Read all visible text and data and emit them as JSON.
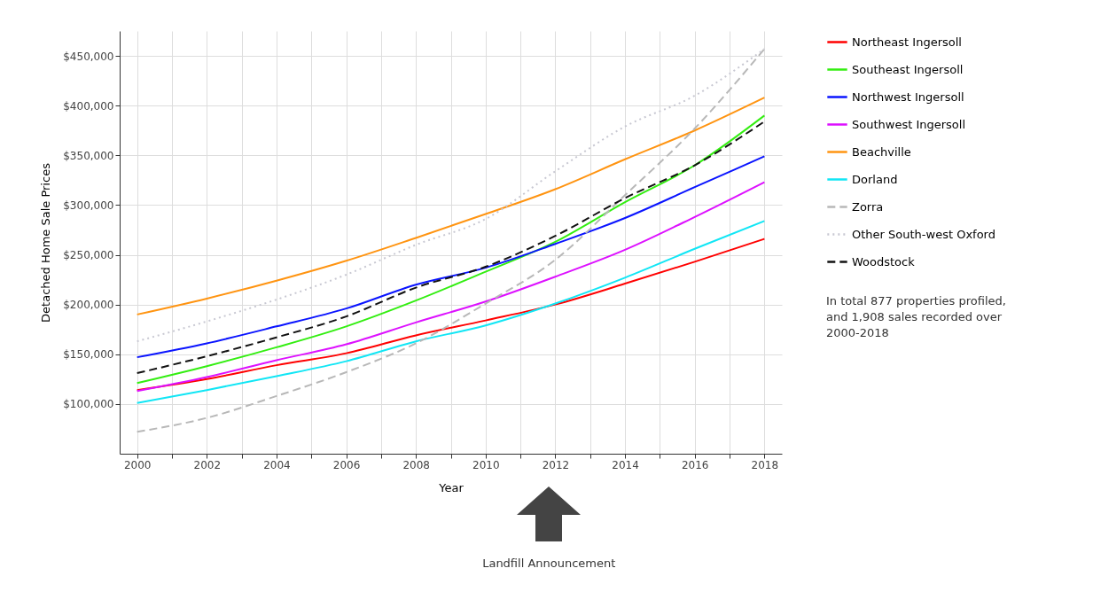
{
  "chart_data": {
    "type": "line",
    "xlabel": "Year",
    "ylabel": "Detached Home Sale Prices",
    "x": [
      2000,
      2002,
      2004,
      2006,
      2008,
      2010,
      2012,
      2014,
      2016,
      2018
    ],
    "series": [
      {
        "name": "Northeast Ingersoll",
        "color": "#ff0000",
        "line_style": "solid",
        "values": [
          114000,
          125000,
          139000,
          151000,
          169000,
          184000,
          200000,
          221000,
          243000,
          266000
        ]
      },
      {
        "name": "Southeast Ingersoll",
        "color": "#33ee11",
        "line_style": "solid",
        "values": [
          121000,
          138000,
          157000,
          178000,
          204000,
          233000,
          263000,
          303000,
          340000,
          390000
        ]
      },
      {
        "name": "Northwest Ingersoll",
        "color": "#0a14ff",
        "line_style": "solid",
        "values": [
          147000,
          161000,
          178000,
          196000,
          220000,
          237000,
          261000,
          287000,
          318000,
          349000
        ]
      },
      {
        "name": "Southwest Ingersoll",
        "color": "#dd11ff",
        "line_style": "solid",
        "values": [
          113000,
          127000,
          144000,
          160000,
          182000,
          203000,
          228000,
          255000,
          288000,
          323000
        ]
      },
      {
        "name": "Beachville",
        "color": "#ff9411",
        "line_style": "solid",
        "values": [
          190000,
          206000,
          224000,
          244000,
          267000,
          291000,
          316000,
          346000,
          375000,
          408000
        ]
      },
      {
        "name": "Dorland",
        "color": "#11e6f5",
        "line_style": "solid",
        "values": [
          101000,
          114000,
          128000,
          143000,
          163000,
          179000,
          201000,
          227000,
          256000,
          284000
        ]
      },
      {
        "name": "Zorra",
        "color": "#b8b8b8",
        "line_style": "dashed",
        "values": [
          72000,
          86000,
          108000,
          132000,
          161000,
          201000,
          245000,
          310000,
          377000,
          457000
        ]
      },
      {
        "name": "Other South-west Oxford",
        "color": "#c8c8d2",
        "line_style": "dotted",
        "values": [
          163000,
          183000,
          205000,
          230000,
          260000,
          286000,
          334000,
          379000,
          410000,
          457000
        ]
      },
      {
        "name": "Woodstock",
        "color": "#111111",
        "line_style": "dashed",
        "values": [
          131000,
          148000,
          167000,
          188000,
          217000,
          238000,
          269000,
          307000,
          340000,
          384000
        ]
      }
    ],
    "xlim": [
      1999.5,
      2018.5
    ],
    "ylim": [
      50000,
      475000
    ],
    "xticks": [
      2000,
      {
        "value": 2001,
        "label": null
      },
      2002,
      {
        "value": 2003,
        "label": null
      },
      2004,
      {
        "value": 2005,
        "label": null
      },
      2006,
      {
        "value": 2007,
        "label": null
      },
      2008,
      {
        "value": 2009,
        "label": null
      },
      2010,
      {
        "value": 2011,
        "label": null
      },
      2012,
      {
        "value": 2013,
        "label": null
      },
      2014,
      {
        "value": 2015,
        "label": null
      },
      2016,
      {
        "value": 2017,
        "label": null
      },
      2018
    ],
    "yticks": [
      {
        "value": 100000,
        "label": "$100,000"
      },
      {
        "value": 150000,
        "label": "$150,000"
      },
      {
        "value": 200000,
        "label": "$200,000"
      },
      {
        "value": 250000,
        "label": "$250,000"
      },
      {
        "value": 300000,
        "label": "$300,000"
      },
      {
        "value": 350000,
        "label": "$350,000"
      },
      {
        "value": 400000,
        "label": "$400,000"
      },
      {
        "value": 450000,
        "label": "$450,000"
      }
    ],
    "grid": true,
    "legend": "top right",
    "marker": "none",
    "annotations": [
      "In total 877 properties profiled, and 1,908 sales recorded over 2000-2018",
      "Landfill Announcement"
    ]
  }
}
